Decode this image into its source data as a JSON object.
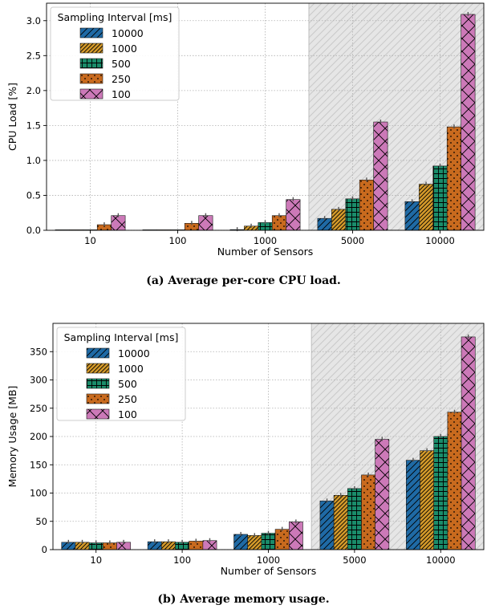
{
  "colors": {
    "10000": "#1f6aa5",
    "1000": "#d49a2a",
    "500": "#1a8c6a",
    "250": "#c86a1e",
    "100": "#cc79b8"
  },
  "captions": {
    "a": "(a) Average per-core CPU load.",
    "b": "(b) Average memory usage."
  },
  "chart_data": [
    {
      "type": "bar",
      "xlabel": "Number of Sensors",
      "ylabel": "CPU Load [%]",
      "categories": [
        "10",
        "100",
        "1000",
        "5000",
        "10000"
      ],
      "ylim": [
        0,
        3.25
      ],
      "yticks": [
        0.0,
        0.5,
        1.0,
        1.5,
        2.0,
        2.5,
        3.0
      ],
      "ytick_labels": [
        "0.0",
        "0.5",
        "1.0",
        "1.5",
        "2.0",
        "2.5",
        "3.0"
      ],
      "grid": true,
      "shaded_categories": [
        "5000",
        "10000"
      ],
      "legend": {
        "title": "Sampling Interval [ms]",
        "placement": "top-left"
      },
      "series": [
        {
          "name": "10000",
          "values": [
            0.0,
            0.0,
            0.01,
            0.17,
            0.41
          ]
        },
        {
          "name": "1000",
          "values": [
            0.0,
            0.0,
            0.06,
            0.3,
            0.66
          ]
        },
        {
          "name": "500",
          "values": [
            0.0,
            0.0,
            0.11,
            0.45,
            0.92
          ]
        },
        {
          "name": "250",
          "values": [
            0.08,
            0.1,
            0.21,
            0.72,
            1.48
          ]
        },
        {
          "name": "100",
          "values": [
            0.21,
            0.21,
            0.44,
            1.55,
            3.09
          ]
        }
      ]
    },
    {
      "type": "bar",
      "xlabel": "Number of Sensors",
      "ylabel": "Memory Usage [MB]",
      "categories": [
        "10",
        "100",
        "1000",
        "5000",
        "10000"
      ],
      "ylim": [
        0,
        400
      ],
      "yticks": [
        0,
        50,
        100,
        150,
        200,
        250,
        300,
        350
      ],
      "ytick_labels": [
        "0",
        "50",
        "100",
        "150",
        "200",
        "250",
        "300",
        "350"
      ],
      "grid": true,
      "shaded_categories": [
        "5000",
        "10000"
      ],
      "legend": {
        "title": "Sampling Interval [ms]",
        "placement": "top-left"
      },
      "series": [
        {
          "name": "10000",
          "values": [
            13,
            14,
            27,
            86,
            158
          ]
        },
        {
          "name": "1000",
          "values": [
            13,
            14,
            25,
            96,
            175
          ]
        },
        {
          "name": "500",
          "values": [
            12,
            13,
            29,
            108,
            200
          ]
        },
        {
          "name": "250",
          "values": [
            12,
            15,
            36,
            132,
            243
          ]
        },
        {
          "name": "100",
          "values": [
            13,
            16,
            49,
            195,
            376
          ]
        }
      ]
    }
  ]
}
